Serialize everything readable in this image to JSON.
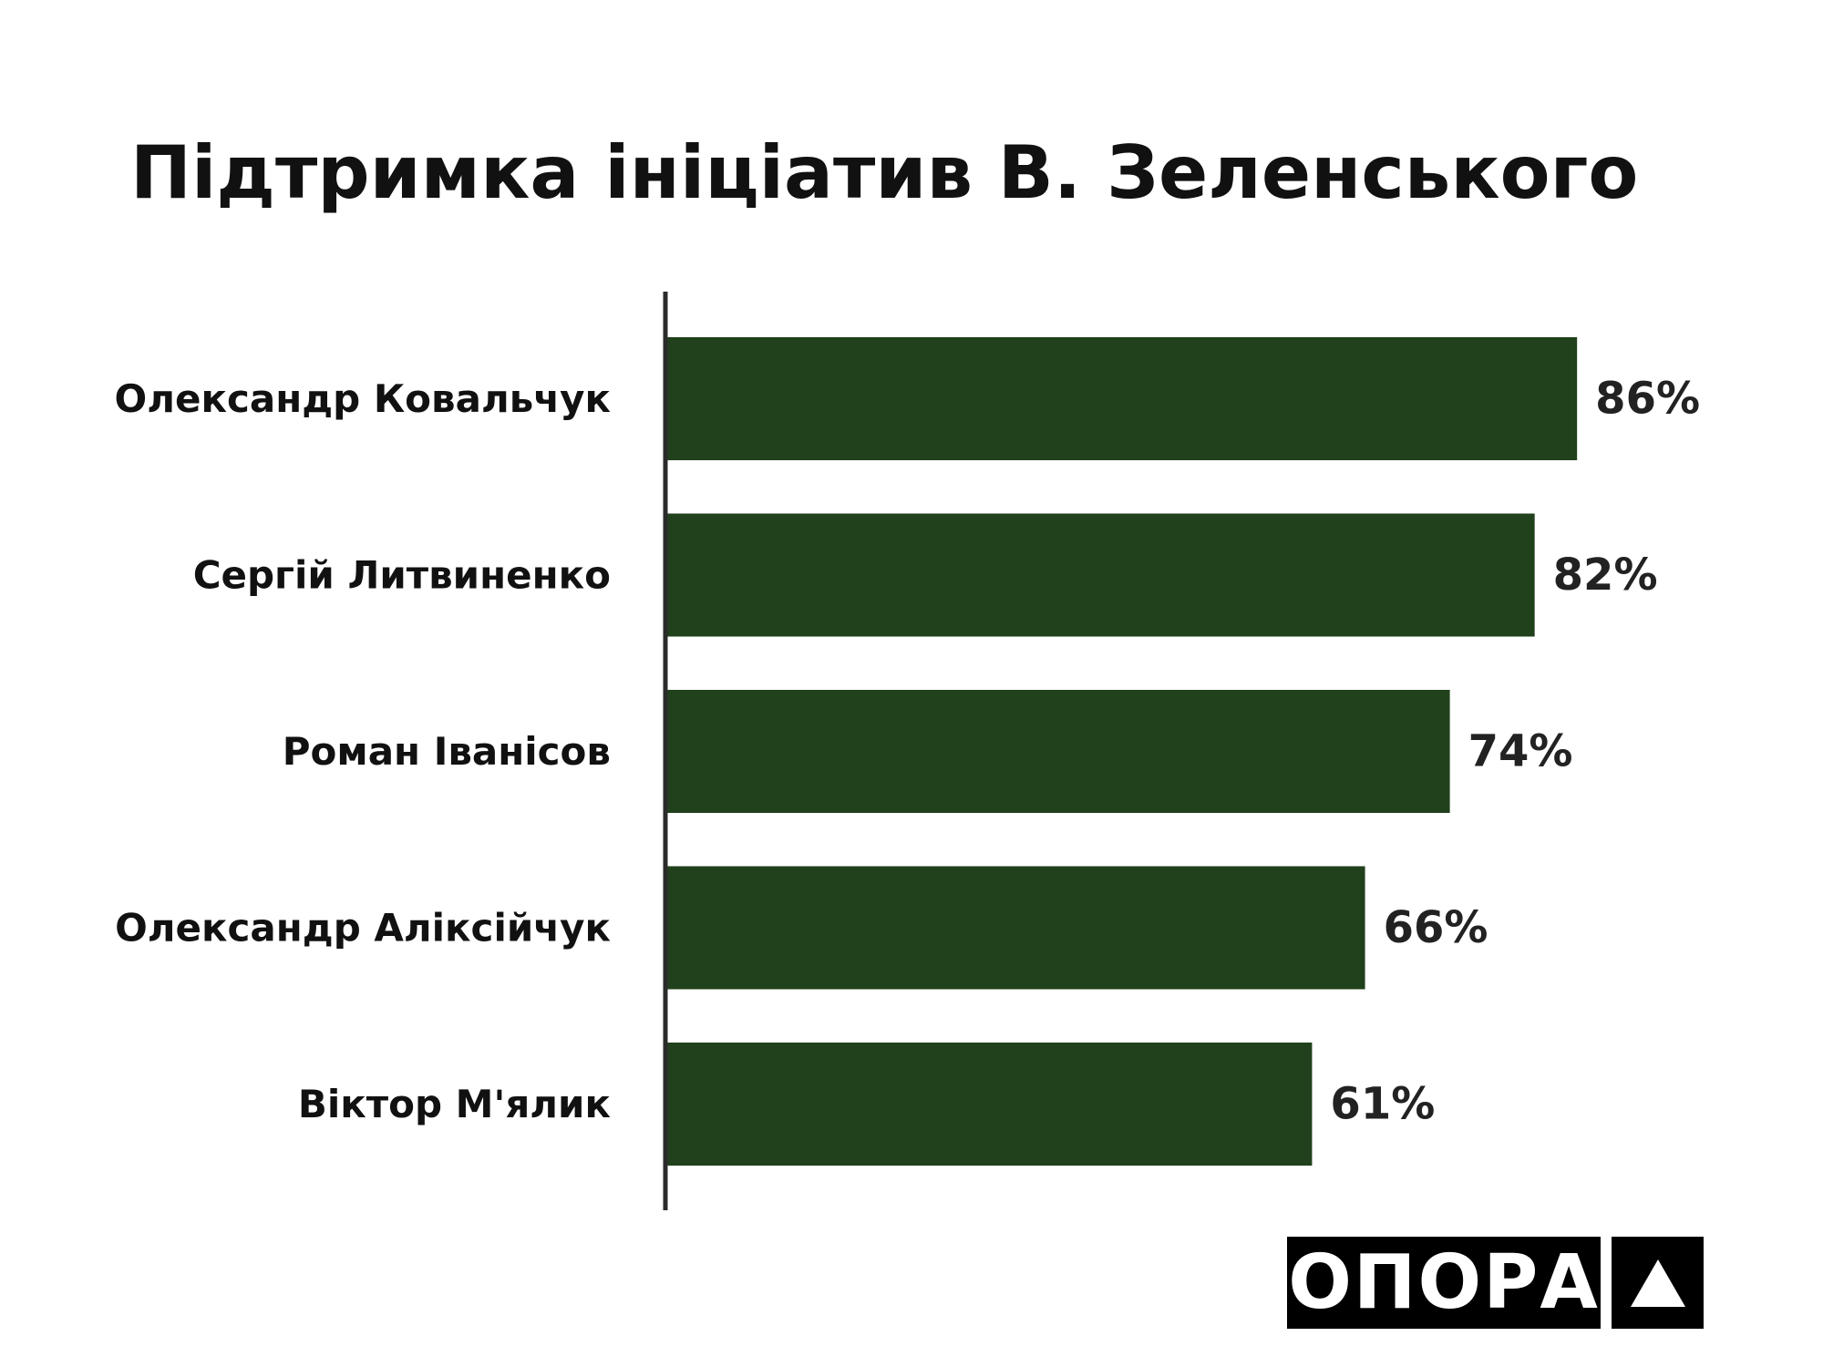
{
  "chart_data": {
    "type": "bar",
    "orientation": "horizontal",
    "title": "Підтримка ініціатив В. Зеленського",
    "categories": [
      "Олександр Ковальчук",
      "Сергій Литвиненко",
      "Роман Іванісов",
      "Олександр Аліксійчук",
      "Віктор М'ялик"
    ],
    "values": [
      86,
      82,
      74,
      66,
      61
    ],
    "value_labels": [
      "86%",
      "82%",
      "74%",
      "66%",
      "61%"
    ],
    "unit": "%",
    "xlim": [
      0,
      100
    ],
    "grid": false,
    "legend": "none",
    "colors": {
      "bar": "#21401c",
      "axis": "#2b2b2b",
      "text": "#111111"
    }
  },
  "logo": {
    "text": "ОПОРА",
    "mark_icon": "triangle-icon"
  }
}
